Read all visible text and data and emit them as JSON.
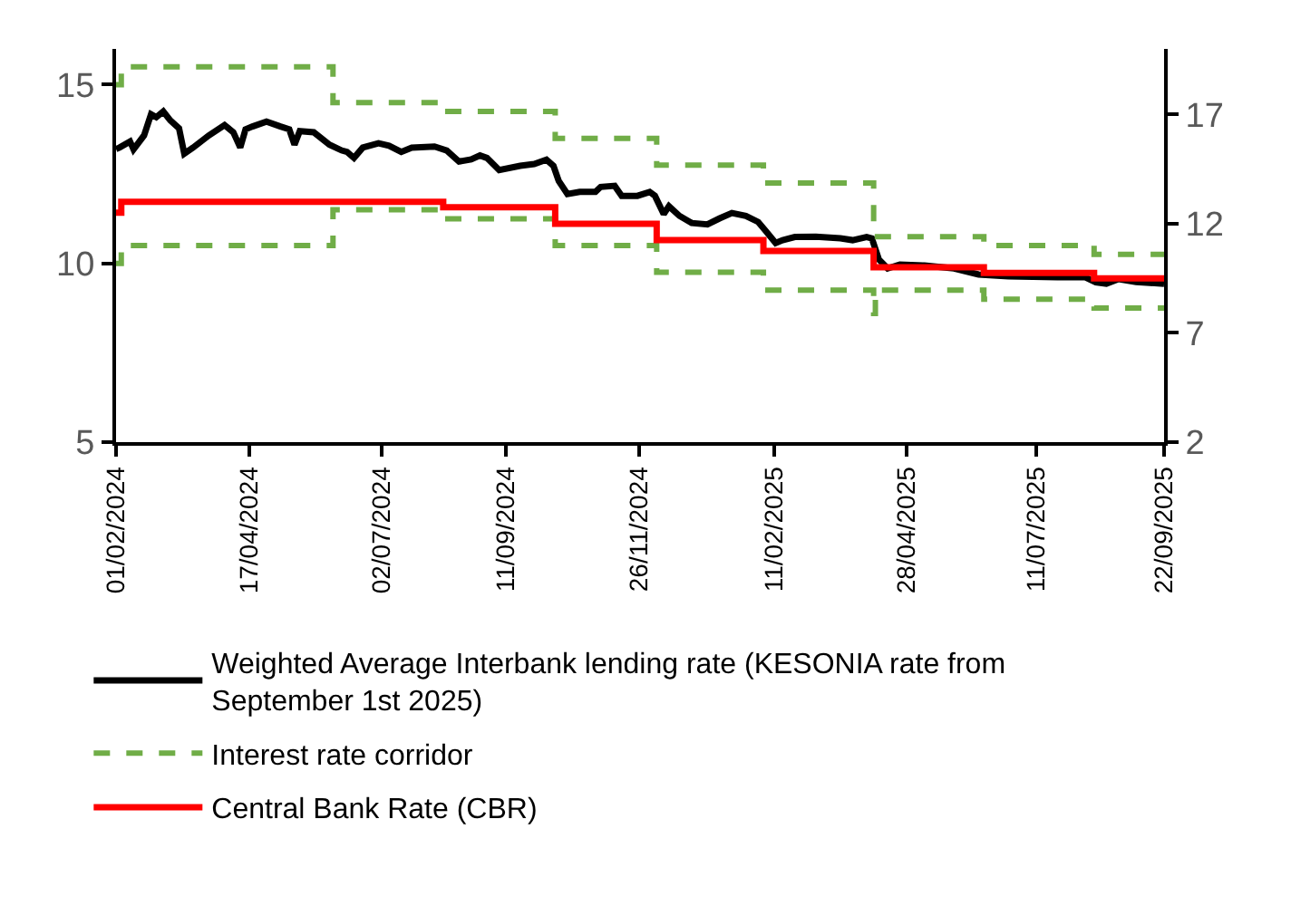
{
  "chart_data": {
    "type": "line",
    "series": [
      {
        "name": "Weighted Average Interbank lending rate (KESONIA rate from September 1st 2025)",
        "color": "#000000",
        "line_style": "solid",
        "x": [
          "2024-02-01",
          "2024-02-03",
          "2024-02-09",
          "2024-02-11",
          "2024-02-17",
          "2024-02-21",
          "2024-02-24",
          "2024-02-28",
          "2024-03-03",
          "2024-03-08",
          "2024-03-11",
          "2024-03-16",
          "2024-03-25",
          "2024-04-03",
          "2024-04-08",
          "2024-04-12",
          "2024-04-15",
          "2024-04-19",
          "2024-04-27",
          "2024-05-05",
          "2024-05-10",
          "2024-05-13",
          "2024-05-16",
          "2024-05-24",
          "2024-06-02",
          "2024-06-09",
          "2024-06-12",
          "2024-06-16",
          "2024-06-21",
          "2024-06-30",
          "2024-07-06",
          "2024-07-13",
          "2024-07-19",
          "2024-08-01",
          "2024-08-08",
          "2024-08-15",
          "2024-08-22",
          "2024-08-27",
          "2024-08-31",
          "2024-09-07",
          "2024-09-19",
          "2024-09-27",
          "2024-10-04",
          "2024-10-08",
          "2024-10-11",
          "2024-10-16",
          "2024-10-23",
          "2024-11-01",
          "2024-11-04",
          "2024-11-12",
          "2024-11-16",
          "2024-11-25",
          "2024-12-02",
          "2024-12-05",
          "2024-12-10",
          "2024-12-13",
          "2024-12-19",
          "2024-12-26",
          "2025-01-04",
          "2025-01-11",
          "2025-01-18",
          "2025-01-26",
          "2025-02-02",
          "2025-02-07",
          "2025-02-12",
          "2025-02-16",
          "2025-02-23",
          "2025-03-07",
          "2025-03-21",
          "2025-03-28",
          "2025-04-05",
          "2025-04-08",
          "2025-04-12",
          "2025-04-17",
          "2025-04-24",
          "2025-05-08",
          "2025-05-25",
          "2025-06-08",
          "2025-06-25",
          "2025-07-23",
          "2025-08-08",
          "2025-08-14",
          "2025-08-20",
          "2025-08-27",
          "2025-09-06",
          "2025-09-22"
        ],
        "values": [
          13.2,
          13.24,
          13.41,
          13.19,
          13.58,
          14.17,
          14.09,
          14.25,
          14.0,
          13.78,
          13.07,
          13.24,
          13.58,
          13.87,
          13.67,
          13.24,
          13.75,
          13.83,
          13.97,
          13.83,
          13.75,
          13.32,
          13.7,
          13.67,
          13.32,
          13.16,
          13.12,
          12.95,
          13.24,
          13.36,
          13.29,
          13.12,
          13.24,
          13.27,
          13.16,
          12.85,
          12.91,
          13.02,
          12.95,
          12.61,
          12.73,
          12.78,
          12.9,
          12.73,
          12.31,
          11.94,
          12.0,
          12.0,
          12.14,
          12.17,
          11.89,
          11.89,
          12.0,
          11.89,
          11.38,
          11.6,
          11.33,
          11.13,
          11.09,
          11.26,
          11.41,
          11.33,
          11.16,
          10.87,
          10.57,
          10.65,
          10.74,
          10.75,
          10.7,
          10.65,
          10.74,
          10.7,
          10.11,
          9.86,
          9.97,
          9.94,
          9.86,
          9.69,
          9.64,
          9.61,
          9.61,
          9.47,
          9.43,
          9.56,
          9.48,
          9.43
        ]
      },
      {
        "name": "Interest rate corridor",
        "color": "#70ad47",
        "type": "step",
        "line_style": "dashed",
        "x": [
          "2024-02-01",
          "2024-02-04",
          "2024-06-04",
          "2024-08-06",
          "2024-10-09",
          "2024-12-06",
          "2025-02-05",
          "2025-04-09",
          "2025-06-11",
          "2025-08-13",
          "2025-09-22"
        ],
        "values": [
          15,
          15.5,
          14.5,
          14.25,
          13.5,
          12.75,
          12.25,
          10.75,
          10.5,
          10.25,
          10.25
        ]
      },
      {
        "color": "#70ad47",
        "type": "step",
        "line_style": "dashed",
        "x": [
          "2024-02-01",
          "2024-02-04",
          "2024-06-04",
          "2024-08-06",
          "2024-10-09",
          "2024-12-06",
          "2025-02-05",
          "2025-04-09",
          "2025-04-10",
          "2025-06-11",
          "2025-08-13",
          "2025-09-22"
        ],
        "values": [
          10,
          10.5,
          11.5,
          11.25,
          10.5,
          9.75,
          9.25,
          8.6,
          9.25,
          9.0,
          8.75,
          8.75
        ]
      },
      {
        "name": "Central Bank Rate (CBR)",
        "color": "#ff0000",
        "type": "step",
        "line_style": "solid",
        "axis": "y2",
        "x": [
          "2024-02-01",
          "2024-02-04",
          "2024-08-06",
          "2024-10-09",
          "2024-12-06",
          "2025-02-05",
          "2025-04-09",
          "2025-06-11",
          "2025-08-13",
          "2025-09-22"
        ],
        "values": [
          12.5,
          13,
          12.75,
          12,
          11.25,
          10.75,
          10,
          9.75,
          9.5,
          9.5
        ]
      }
    ],
    "xlim": [
      "2024-02-01",
      "2025-09-22"
    ],
    "xticks": [
      {
        "value": "2024-02-01",
        "label": "01/02/2024"
      },
      {
        "value": "2024-04-17",
        "label": "17/04/2024"
      },
      {
        "value": "2024-07-02",
        "label": "02/07/2024"
      },
      {
        "value": "2024-09-11",
        "label": "11/09/2024"
      },
      {
        "value": "2024-11-26",
        "label": "26/11/2024"
      },
      {
        "value": "2025-02-11",
        "label": "11/02/2025"
      },
      {
        "value": "2025-04-28",
        "label": "28/04/2025"
      },
      {
        "value": "2025-07-11",
        "label": "11/07/2025"
      },
      {
        "value": "2025-09-22",
        "label": "22/09/2025"
      }
    ],
    "ylim": [
      5,
      16
    ],
    "yticks": [
      5,
      10,
      15
    ],
    "y2lim": [
      2,
      20
    ],
    "y2ticks": [
      2,
      7,
      12,
      17
    ],
    "legend": "bottom",
    "marker": "none"
  }
}
